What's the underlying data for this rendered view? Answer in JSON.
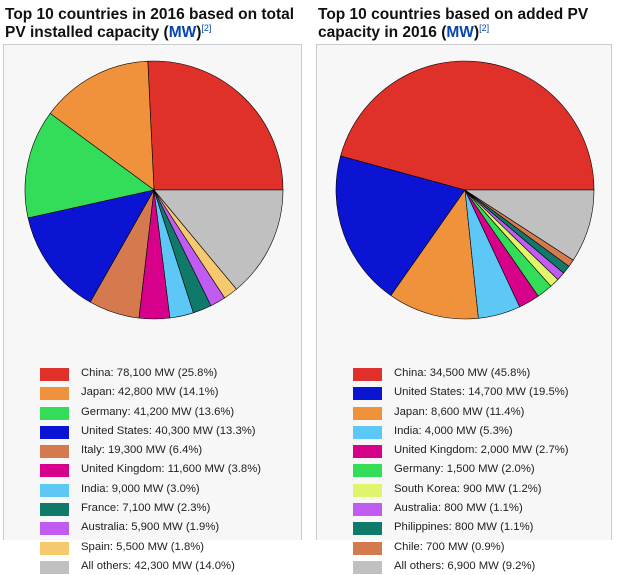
{
  "chart_data": [
    {
      "type": "pie",
      "title": "Top 10 countries in 2016 based on total PV installed capacity",
      "unit_link": "MW",
      "reference": "[2]",
      "categories": [
        "China",
        "Japan",
        "Germany",
        "United States",
        "Italy",
        "United Kingdom",
        "India",
        "France",
        "Australia",
        "Spain",
        "All others"
      ],
      "values": [
        78100,
        42800,
        41200,
        40300,
        19300,
        11600,
        9000,
        7100,
        5900,
        5500,
        42300
      ],
      "legend_labels": [
        "China: 78,100 MW (25.8%)",
        "Japan: 42,800 MW (14.1%)",
        "Germany: 41,200 MW (13.6%)",
        "United States: 40,300 MW (13.3%)",
        "Italy: 19,300 MW (6.4%)",
        "United Kingdom: 11,600 MW (3.8%)",
        "India: 9,000 MW (3.0%)",
        "France: 7,100 MW (2.3%)",
        "Australia: 5,900 MW (1.9%)",
        "Spain: 5,500 MW (1.8%)",
        "All others: 42,300 MW (14.0%)"
      ],
      "colors": [
        "#e0302a",
        "#f0923c",
        "#33dd5a",
        "#0a14d2",
        "#d47a4e",
        "#d6008a",
        "#5dc7f5",
        "#0f7a6a",
        "#c15cf2",
        "#f7c96e",
        "#c0c0c0"
      ]
    },
    {
      "type": "pie",
      "title": "Top 10 countries based on added PV capacity in 2016",
      "unit_link": "MW",
      "reference": "[2]",
      "categories": [
        "China",
        "United States",
        "Japan",
        "India",
        "United Kingdom",
        "Germany",
        "South Korea",
        "Australia",
        "Philippines",
        "Chile",
        "All others"
      ],
      "values": [
        34500,
        14700,
        8600,
        4000,
        2000,
        1500,
        900,
        800,
        800,
        700,
        6900
      ],
      "legend_labels": [
        "China: 34,500 MW (45.8%)",
        "United States: 14,700 MW (19.5%)",
        "Japan: 8,600 MW (11.4%)",
        "India: 4,000 MW (5.3%)",
        "United Kingdom: 2,000 MW (2.7%)",
        "Germany: 1,500 MW (2.0%)",
        "South Korea: 900 MW (1.2%)",
        "Australia: 800 MW (1.1%)",
        "Philippines: 800 MW (1.1%)",
        "Chile: 700 MW (0.9%)",
        "All others: 6,900 MW (9.2%)"
      ],
      "colors": [
        "#e0302a",
        "#0a14d2",
        "#f0923c",
        "#5dc7f5",
        "#d6008a",
        "#33dd5a",
        "#e2f56a",
        "#c15cf2",
        "#0f7a6a",
        "#d47a4e",
        "#c0c0c0"
      ]
    }
  ]
}
